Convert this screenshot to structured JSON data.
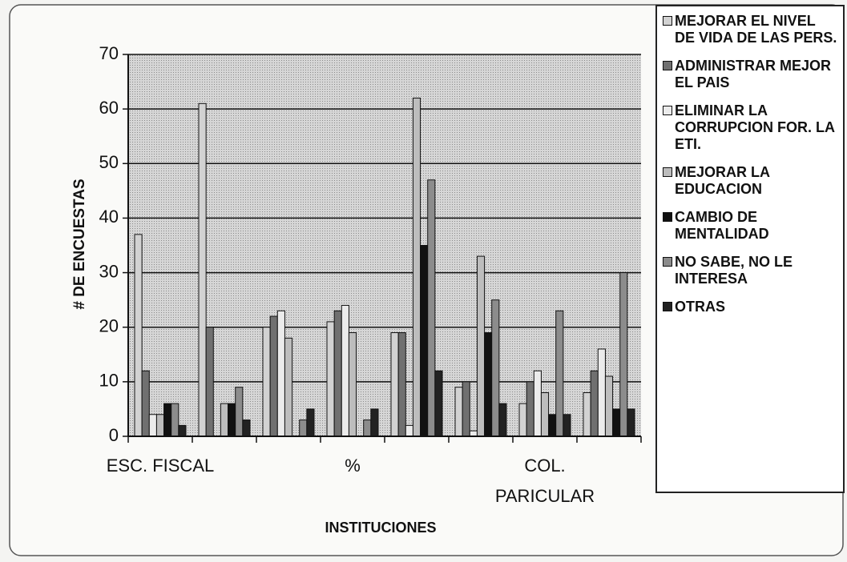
{
  "chart_data": {
    "type": "bar",
    "y_label": "# DE ENCUESTAS",
    "x_label": "INSTITUCIONES",
    "categories": [
      "ESC. FISCAL",
      null,
      null,
      "%",
      null,
      null,
      "COL. PARICULAR",
      null
    ],
    "ylim": [
      0,
      70
    ],
    "yticks": [
      0,
      10,
      20,
      30,
      40,
      50,
      60,
      70
    ],
    "grid": true,
    "legend": "right",
    "series": [
      {
        "name": "MEJORAR EL NIVEL DE VIDA DE LAS PERS.",
        "color": "#d2d2d2",
        "values": [
          37,
          61,
          20,
          21,
          19,
          9,
          6,
          8
        ]
      },
      {
        "name": "ADMINISTRAR MEJOR EL PAIS",
        "color": "#707070",
        "values": [
          12,
          20,
          22,
          23,
          19,
          10,
          10,
          12
        ]
      },
      {
        "name": "ELIMINAR LA CORRUPCION FOR. LA ETI.",
        "color": "#ebebeb",
        "values": [
          4,
          0,
          23,
          24,
          2,
          1,
          12,
          16
        ]
      },
      {
        "name": "MEJORAR LA EDUCACION",
        "color": "#bdbdbd",
        "values": [
          4,
          6,
          18,
          19,
          62,
          33,
          8,
          11
        ]
      },
      {
        "name": "CAMBIO DE MENTALIDAD",
        "color": "#111111",
        "values": [
          6,
          6,
          0,
          0,
          35,
          19,
          4,
          5
        ]
      },
      {
        "name": "NO SABE, NO LE INTERESA",
        "color": "#8c8c8c",
        "values": [
          6,
          9,
          3,
          3,
          47,
          25,
          23,
          30
        ]
      },
      {
        "name": "OTRAS",
        "color": "#222222",
        "values": [
          2,
          3,
          5,
          5,
          12,
          6,
          4,
          5
        ]
      }
    ]
  }
}
